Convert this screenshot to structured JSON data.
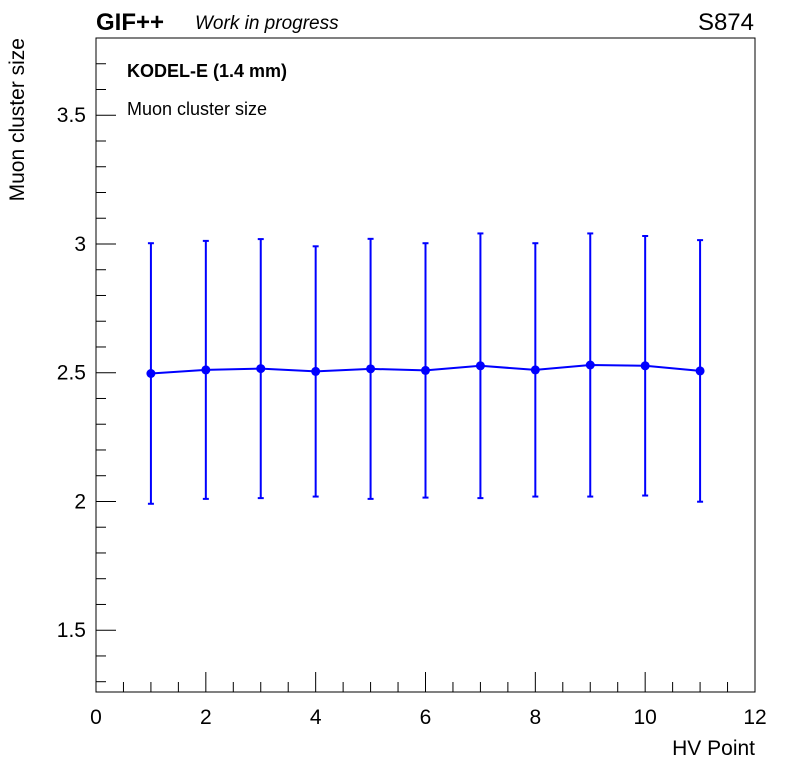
{
  "header": {
    "experiment": "GIF++",
    "status": "Work in progress",
    "chamber": "S874"
  },
  "legend": {
    "detector": "KODEL-E (1.4 mm)",
    "quantity": "Muon cluster size"
  },
  "colors": {
    "series": "#0000ff",
    "axis": "#000000"
  },
  "chart_data": {
    "type": "line",
    "title": "",
    "xlabel": "HV Point",
    "ylabel": "Muon cluster size",
    "xlim": [
      0,
      12
    ],
    "ylim": [
      1.26,
      3.8
    ],
    "x_ticks": [
      0,
      2,
      4,
      6,
      8,
      10,
      12
    ],
    "y_ticks": [
      1.5,
      2,
      2.5,
      3,
      3.5
    ],
    "x_tick_labels": [
      "0",
      "2",
      "4",
      "6",
      "8",
      "10",
      "12"
    ],
    "y_tick_labels": [
      "1.5",
      "2",
      "2.5",
      "3",
      "3.5"
    ],
    "series": [
      {
        "x": [
          1,
          2,
          3,
          4,
          5,
          6,
          7,
          8,
          9,
          10,
          11
        ],
        "y": [
          2.497,
          2.511,
          2.516,
          2.505,
          2.515,
          2.509,
          2.527,
          2.511,
          2.53,
          2.527,
          2.507
        ],
        "y_err": [
          0.506,
          0.501,
          0.503,
          0.486,
          0.505,
          0.494,
          0.514,
          0.492,
          0.511,
          0.504,
          0.508
        ]
      }
    ]
  }
}
